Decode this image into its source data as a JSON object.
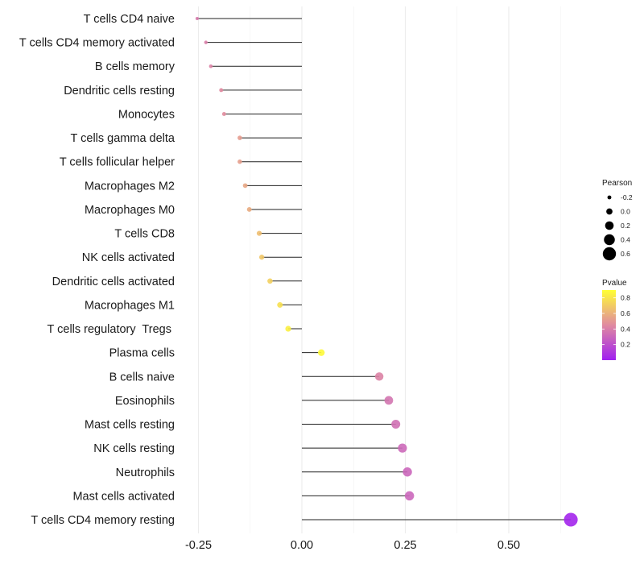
{
  "chart_data": {
    "type": "lollipop",
    "title": "",
    "xlabel": "",
    "ylabel": "",
    "xlim": [
      -0.27,
      0.68
    ],
    "x_ticks": [
      -0.25,
      0.0,
      0.25,
      0.5
    ],
    "x_tick_labels": [
      "-0.25",
      "0.00",
      "0.25",
      "0.50"
    ],
    "grid": true,
    "categories": [
      "T cells CD4 naive",
      "T cells CD4 memory activated",
      "B cells memory",
      "Dendritic cells resting",
      "Monocytes",
      "T cells gamma delta",
      "T cells follicular helper",
      "Macrophages M2",
      "Macrophages M0",
      "T cells CD8",
      "NK cells activated",
      "Dendritic cells activated",
      "Macrophages M1",
      "T cells regulatory  Tregs ",
      "Plasma cells",
      "B cells naive",
      "Eosinophils",
      "Mast cells resting",
      "NK cells resting",
      "Neutrophils",
      "Mast cells activated",
      "T cells CD4 memory resting"
    ],
    "values": [
      -0.253,
      -0.232,
      -0.22,
      -0.195,
      -0.188,
      -0.15,
      -0.15,
      -0.137,
      -0.127,
      -0.103,
      -0.097,
      -0.077,
      -0.053,
      -0.033,
      0.047,
      0.187,
      0.21,
      0.227,
      0.243,
      0.255,
      0.26,
      0.65
    ],
    "pvalues": [
      0.38,
      0.4,
      0.42,
      0.45,
      0.46,
      0.52,
      0.53,
      0.56,
      0.58,
      0.65,
      0.68,
      0.72,
      0.78,
      0.84,
      0.88,
      0.42,
      0.36,
      0.34,
      0.31,
      0.3,
      0.3,
      0.02
    ],
    "legend_size": {
      "title": "Pearson",
      "labels": [
        "-0.2",
        "0.0",
        "0.2",
        "0.4",
        "0.6"
      ],
      "values": [
        -0.2,
        0.0,
        0.2,
        0.4,
        0.6
      ]
    },
    "legend_color": {
      "title": "Pvalue",
      "labels": [
        "0.8",
        "0.6",
        "0.4",
        "0.2"
      ],
      "values": [
        0.8,
        0.6,
        0.4,
        0.2
      ],
      "range": [
        0.0,
        0.9
      ],
      "low_color": "#a020f0",
      "mid_color": "#e08aa0",
      "high_color": "#ffff33"
    },
    "legend_position": "right"
  }
}
